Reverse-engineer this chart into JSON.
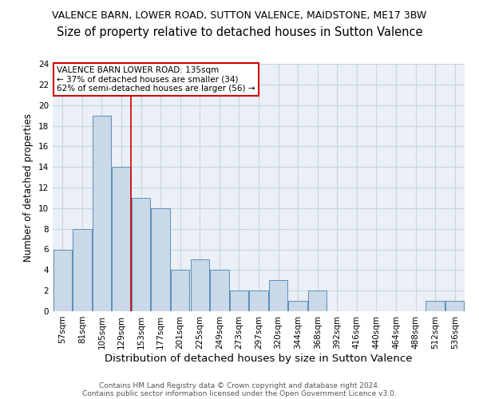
{
  "title1": "VALENCE BARN, LOWER ROAD, SUTTON VALENCE, MAIDSTONE, ME17 3BW",
  "title2": "Size of property relative to detached houses in Sutton Valence",
  "xlabel": "Distribution of detached houses by size in Sutton Valence",
  "ylabel": "Number of detached properties",
  "categories": [
    "57sqm",
    "81sqm",
    "105sqm",
    "129sqm",
    "153sqm",
    "177sqm",
    "201sqm",
    "225sqm",
    "249sqm",
    "273sqm",
    "297sqm",
    "320sqm",
    "344sqm",
    "368sqm",
    "392sqm",
    "416sqm",
    "440sqm",
    "464sqm",
    "488sqm",
    "512sqm",
    "536sqm"
  ],
  "values": [
    6,
    8,
    19,
    14,
    11,
    10,
    4,
    5,
    4,
    2,
    2,
    3,
    1,
    2,
    0,
    0,
    0,
    0,
    0,
    1,
    1
  ],
  "bar_color": "#c9d9e8",
  "bar_edge_color": "#5b8db8",
  "vline_x": 3.47,
  "vline_color": "#cc0000",
  "annotation_box_text": "VALENCE BARN LOWER ROAD: 135sqm\n← 37% of detached houses are smaller (34)\n62% of semi-detached houses are larger (56) →",
  "annotation_box_color": "#ffffff",
  "annotation_box_edge_color": "#cc0000",
  "ylim": [
    0,
    24
  ],
  "yticks": [
    0,
    2,
    4,
    6,
    8,
    10,
    12,
    14,
    16,
    18,
    20,
    22,
    24
  ],
  "grid_color": "#c8d4e0",
  "background_color": "#eaf0f6",
  "footer1": "Contains HM Land Registry data © Crown copyright and database right 2024.",
  "footer2": "Contains public sector information licensed under the Open Government Licence v3.0.",
  "title1_fontsize": 9.0,
  "title2_fontsize": 10.5,
  "tick_fontsize": 7.5,
  "label_fontsize": 9.5,
  "annotation_fontsize": 7.5
}
